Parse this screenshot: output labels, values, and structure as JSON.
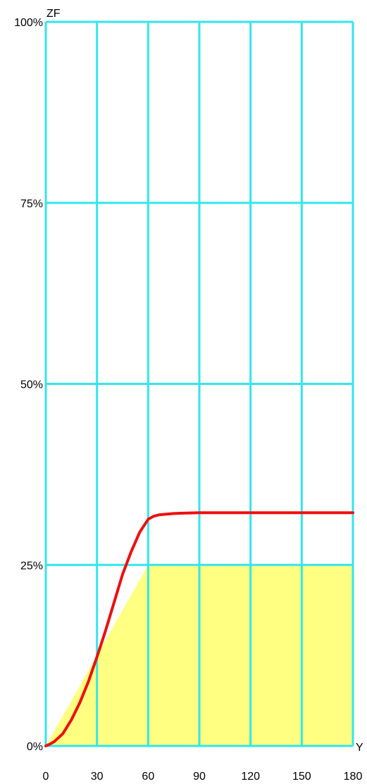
{
  "chart_data": {
    "type": "area",
    "x_axis_label": "Y",
    "y_axis_label": "ZF",
    "x_ticks": [
      "0",
      "30",
      "60",
      "90",
      "120",
      "150",
      "180"
    ],
    "y_ticks": [
      "0%",
      "25%",
      "50%",
      "75%",
      "100%"
    ],
    "xlim": [
      0,
      180
    ],
    "ylim": [
      0,
      100
    ],
    "grid": true,
    "fill_area": {
      "x": [
        0,
        60,
        180
      ],
      "y": [
        0,
        25,
        25
      ]
    },
    "line_series": {
      "x": [
        0,
        2,
        5,
        10,
        15,
        20,
        25,
        30,
        35,
        40,
        45,
        50,
        55,
        60,
        63,
        66,
        70,
        75,
        80,
        90,
        100,
        120,
        150,
        180
      ],
      "y": [
        0,
        0.2,
        0.6,
        1.7,
        3.6,
        6.0,
        8.9,
        12.3,
        15.9,
        19.8,
        23.7,
        26.8,
        29.5,
        31.3,
        31.7,
        31.9,
        32.0,
        32.1,
        32.15,
        32.2,
        32.2,
        32.2,
        32.2,
        32.2
      ]
    },
    "colors": {
      "grid": "#33e6ec",
      "fill": "#ffff82",
      "line": "#ee0f0f",
      "text": "#000000"
    }
  }
}
